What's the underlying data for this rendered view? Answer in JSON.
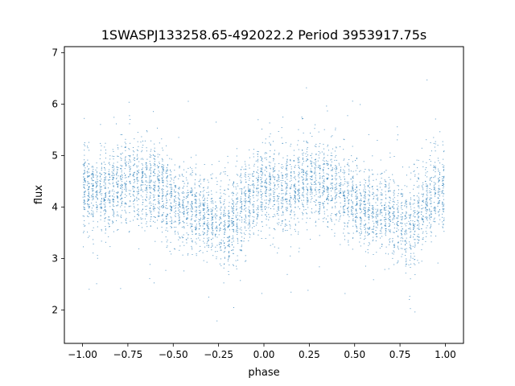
{
  "chart_data": {
    "type": "scatter",
    "title": "1SWASPJ133258.65-492022.2 Period 3953917.75s",
    "xlabel": "phase",
    "ylabel": "flux",
    "xlim": [
      -1.1,
      1.1
    ],
    "ylim": [
      1.35,
      7.12
    ],
    "x_ticks": [
      -1.0,
      -0.75,
      -0.5,
      -0.25,
      0.0,
      0.25,
      0.5,
      0.75,
      1.0
    ],
    "x_tick_labels": [
      "−1.00",
      "−0.75",
      "−0.50",
      "−0.25",
      "0.00",
      "0.25",
      "0.50",
      "0.75",
      "1.00"
    ],
    "y_ticks": [
      2,
      3,
      4,
      5,
      6,
      7
    ],
    "y_tick_labels": [
      "2",
      "3",
      "4",
      "5",
      "6",
      "7"
    ],
    "grid": false,
    "legend": "none",
    "marker_color": "#1f77b4",
    "series": [
      {
        "x_range": [
          -1.0,
          1.0
        ],
        "mirrored_phase": true,
        "mean_flux_profile": {
          "phase": [
            0.0,
            0.05,
            0.1,
            0.15,
            0.2,
            0.25,
            0.3,
            0.35,
            0.4,
            0.45,
            0.5,
            0.55,
            0.6,
            0.65,
            0.7,
            0.75,
            0.8,
            0.85,
            0.9,
            0.95,
            1.0
          ],
          "flux": [
            4.35,
            4.3,
            4.25,
            4.3,
            4.5,
            4.55,
            4.5,
            4.45,
            4.4,
            4.3,
            4.1,
            4.0,
            3.95,
            3.95,
            3.85,
            3.75,
            3.6,
            3.85,
            4.1,
            4.3,
            4.35
          ]
        },
        "flux_scatter": 0.4,
        "flux_min": 1.6,
        "flux_max": 6.85
      }
    ]
  }
}
